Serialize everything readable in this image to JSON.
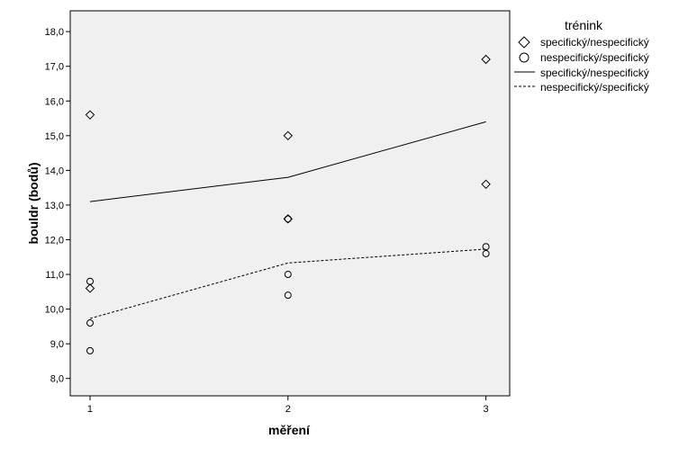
{
  "chart_data": {
    "type": "scatter",
    "xlabel": "měření",
    "ylabel": "bouldr (bodů)",
    "x_ticks": [
      "1",
      "2",
      "3"
    ],
    "y_ticks": [
      "8,0",
      "9,0",
      "10,0",
      "11,0",
      "12,0",
      "13,0",
      "14,0",
      "15,0",
      "16,0",
      "17,0",
      "18,0"
    ],
    "xlim": [
      0.9,
      3.12
    ],
    "ylim": [
      7.5,
      18.6
    ],
    "grid": false,
    "legend": {
      "title": "trénink",
      "placement": "right",
      "entries": [
        {
          "label": "specifický/nespecifický",
          "marker": "diamond"
        },
        {
          "label": "nespecifický/specifický",
          "marker": "circle"
        },
        {
          "label": "specifický/nespecifický",
          "line": "solid"
        },
        {
          "label": "nespecifický/specifický",
          "line": "dashed"
        }
      ]
    },
    "series": [
      {
        "name": "specifický/nespecifický",
        "kind": "points",
        "marker": "diamond",
        "points": [
          [
            1,
            15.6
          ],
          [
            1,
            10.6
          ],
          [
            2,
            15.0
          ],
          [
            2,
            12.6
          ],
          [
            3,
            17.2
          ],
          [
            3,
            13.6
          ]
        ]
      },
      {
        "name": "nespecifický/specifický",
        "kind": "points",
        "marker": "circle",
        "points": [
          [
            1,
            10.8
          ],
          [
            1,
            9.6
          ],
          [
            1,
            8.8
          ],
          [
            2,
            12.6
          ],
          [
            2,
            11.0
          ],
          [
            2,
            10.4
          ],
          [
            3,
            11.8
          ],
          [
            3,
            11.6
          ]
        ]
      },
      {
        "name": "specifický/nespecifický",
        "kind": "line",
        "dash": "solid",
        "points": [
          [
            1,
            13.1
          ],
          [
            2,
            13.8
          ],
          [
            3,
            15.4
          ]
        ]
      },
      {
        "name": "nespecifický/specifický",
        "kind": "line",
        "dash": "dashed",
        "points": [
          [
            1,
            9.73
          ],
          [
            2,
            11.33
          ],
          [
            3,
            11.73
          ]
        ]
      }
    ],
    "colors": {
      "plot_background": "#f0f0f0",
      "mark": "#000000"
    }
  }
}
